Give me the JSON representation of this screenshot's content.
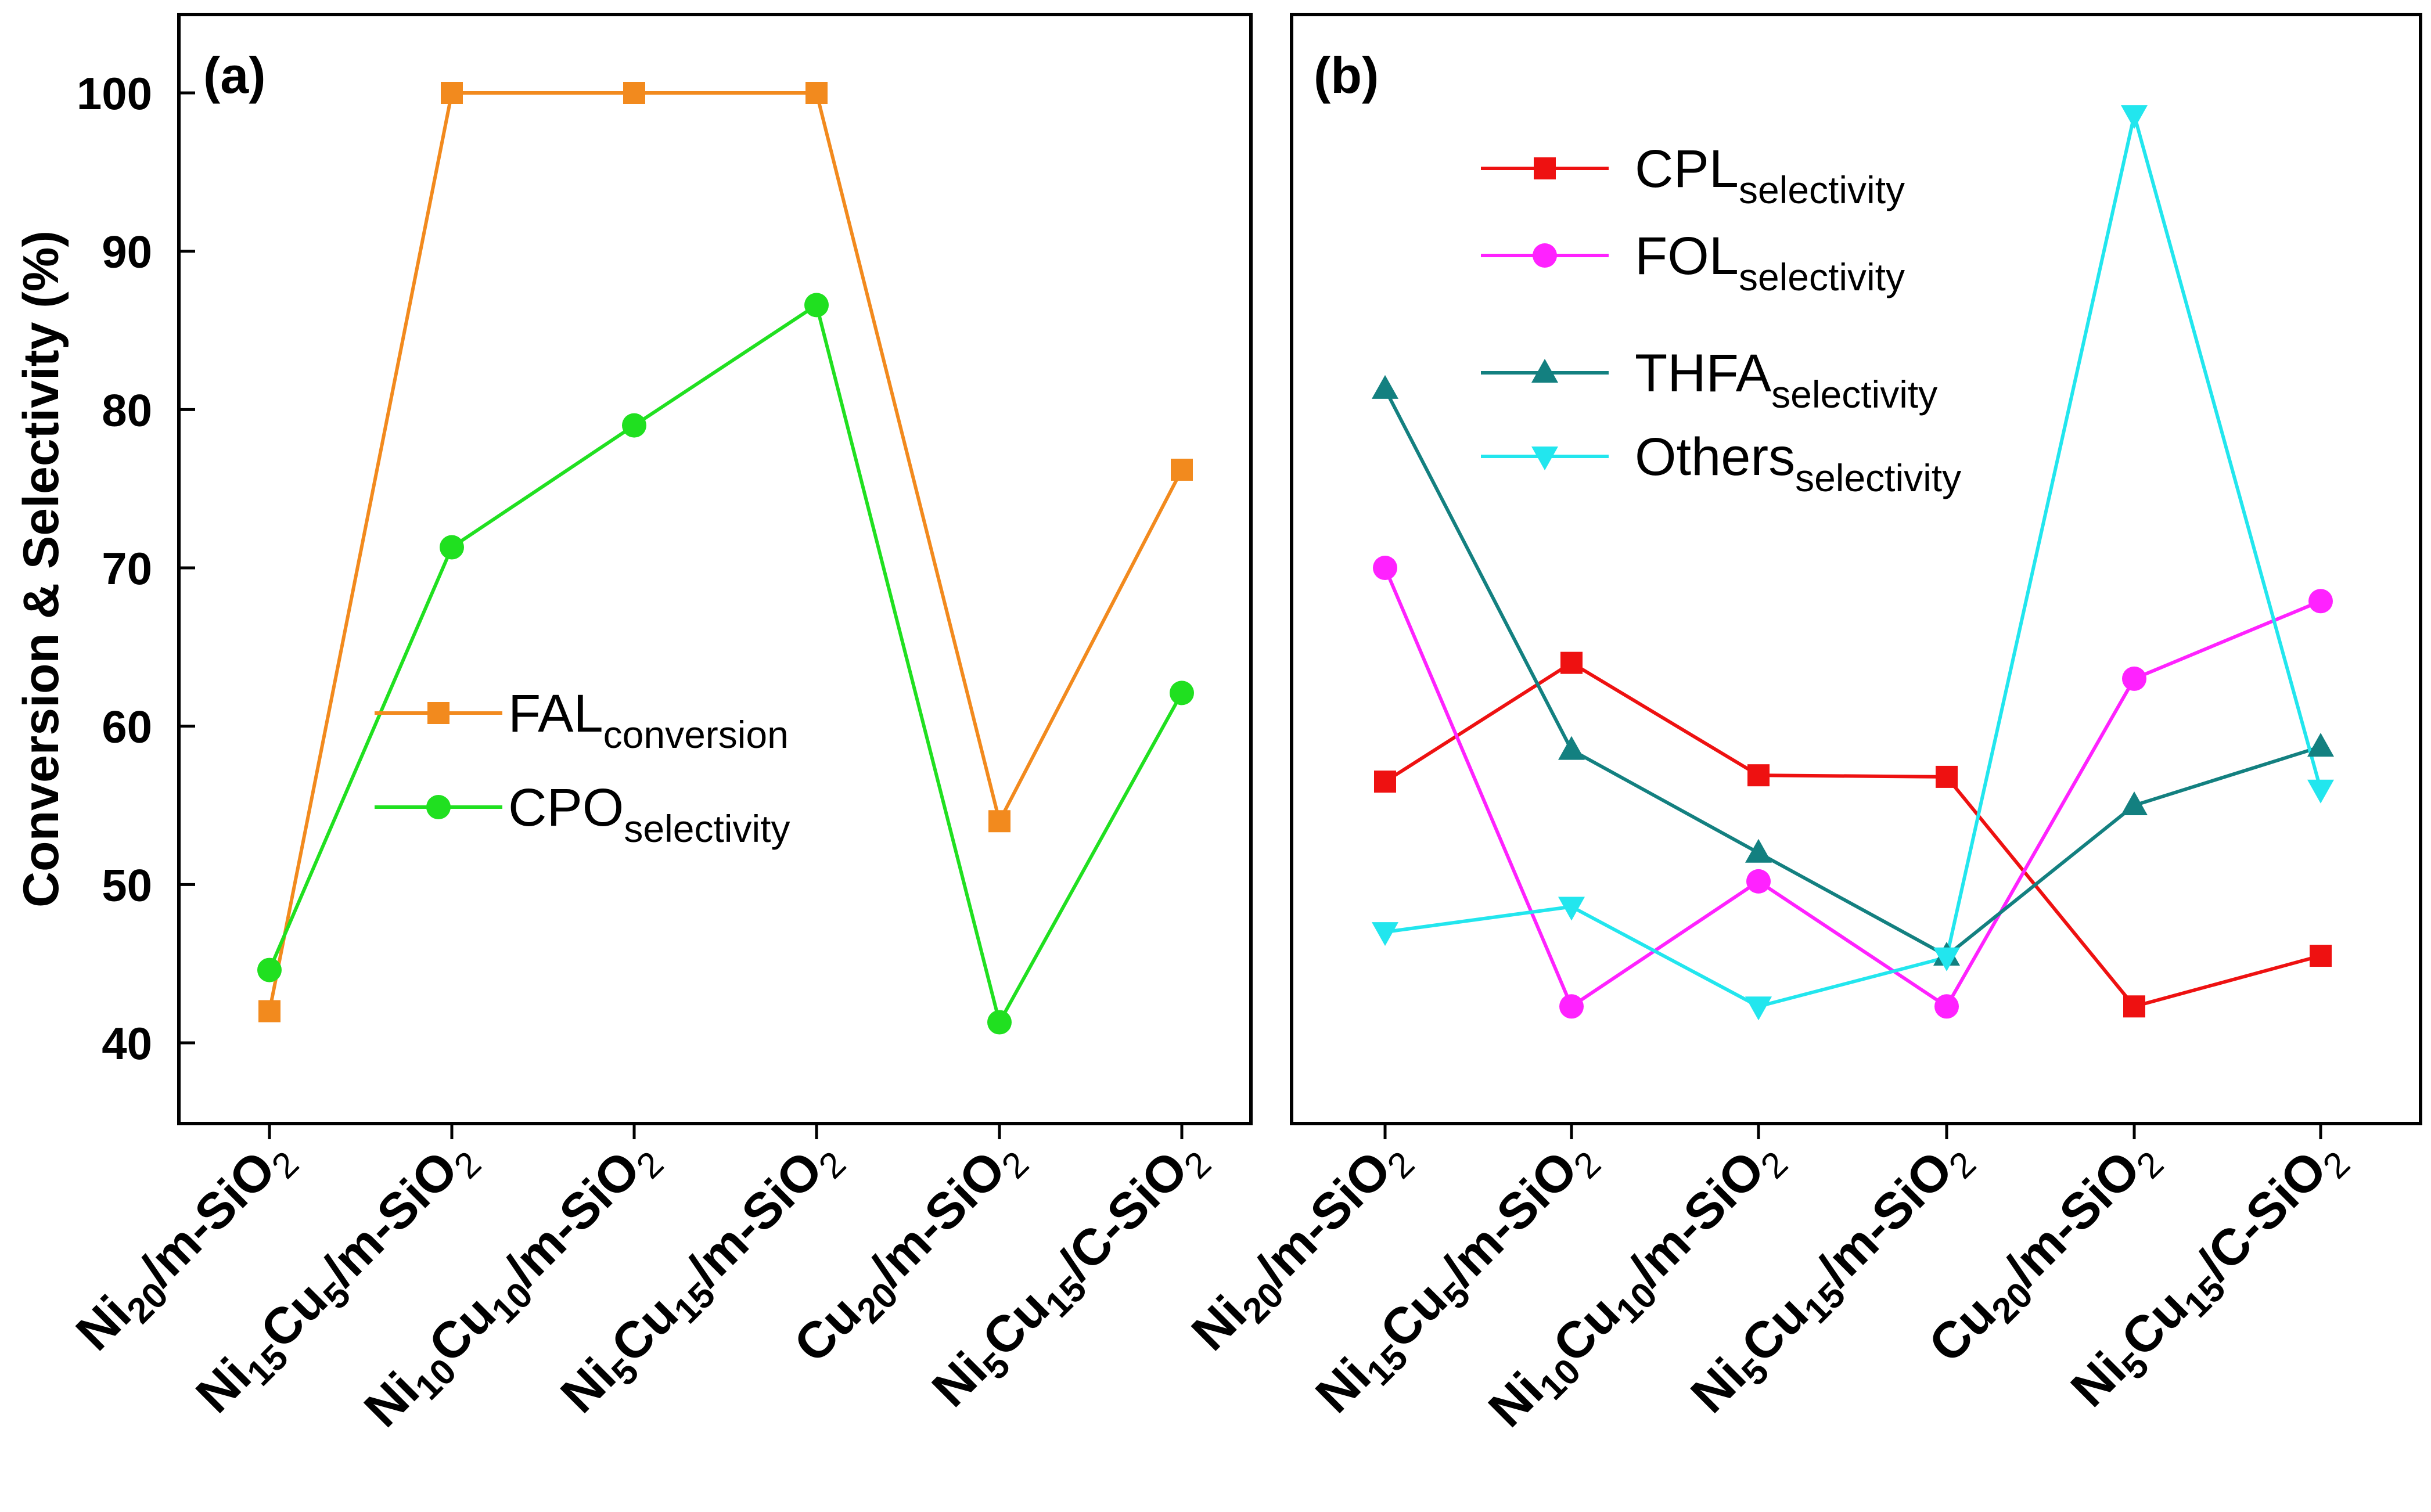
{
  "chart_data": [
    {
      "panel_label": "(a)",
      "type": "line",
      "xlabel": "",
      "ylabel": "Conversion & Selectivity (%)",
      "ylim": [
        35,
        105
      ],
      "yticks": [
        40,
        50,
        60,
        70,
        80,
        90,
        100
      ],
      "categories": [
        {
          "base1": "Ni",
          "sub1": "20",
          "base2": "",
          "sub2": "",
          "tail": "/m-SiO",
          "sub3": "2"
        },
        {
          "base1": "Ni",
          "sub1": "15",
          "base2": "Cu",
          "sub2": "5",
          "tail": "/m-SiO",
          "sub3": "2"
        },
        {
          "base1": "Ni",
          "sub1": "10",
          "base2": "Cu",
          "sub2": "10",
          "tail": "/m-SiO",
          "sub3": "2"
        },
        {
          "base1": "Ni",
          "sub1": "5",
          "base2": "Cu",
          "sub2": "15",
          "tail": "/m-SiO",
          "sub3": "2"
        },
        {
          "base1": "Cu",
          "sub1": "20",
          "base2": "",
          "sub2": "",
          "tail": "/m-SiO",
          "sub3": "2"
        },
        {
          "base1": "Ni",
          "sub1": "5",
          "base2": "Cu",
          "sub2": "15",
          "tail": "/C-SiO",
          "sub3": "2"
        }
      ],
      "legend_position": "center",
      "series": [
        {
          "name": "FAL",
          "name_sub": "conversion",
          "marker": "square",
          "color": "#f28a1e",
          "values": [
            42,
            100,
            100,
            100,
            54,
            76.2
          ]
        },
        {
          "name": "CPO",
          "name_sub": "selectivity",
          "marker": "circle",
          "color": "#20e020",
          "values": [
            44.6,
            71.3,
            79,
            86.6,
            41.3,
            62.1
          ]
        }
      ]
    },
    {
      "panel_label": "(b)",
      "type": "line",
      "xlabel": "",
      "ylabel": "",
      "ylim": [
        35,
        105
      ],
      "yticks": [],
      "categories": [
        {
          "base1": "Ni",
          "sub1": "20",
          "base2": "",
          "sub2": "",
          "tail": "/m-SiO",
          "sub3": "2"
        },
        {
          "base1": "Ni",
          "sub1": "15",
          "base2": "Cu",
          "sub2": "5",
          "tail": "/m-SiO",
          "sub3": "2"
        },
        {
          "base1": "Ni",
          "sub1": "10",
          "base2": "Cu",
          "sub2": "10",
          "tail": "/m-SiO",
          "sub3": "2"
        },
        {
          "base1": "Ni",
          "sub1": "5",
          "base2": "Cu",
          "sub2": "15",
          "tail": "/m-SiO",
          "sub3": "2"
        },
        {
          "base1": "Cu",
          "sub1": "20",
          "base2": "",
          "sub2": "",
          "tail": "/m-SiO",
          "sub3": "2"
        },
        {
          "base1": "Ni",
          "sub1": "5",
          "base2": "Cu",
          "sub2": "15",
          "tail": "/C-SiO",
          "sub3": "2"
        }
      ],
      "legend_position": "top-left",
      "series": [
        {
          "name": "CPL",
          "name_sub": "selectivity",
          "marker": "square",
          "color": "#ee1111",
          "values": [
            56.5,
            64,
            56.9,
            56.8,
            42.3,
            45.5
          ]
        },
        {
          "name": "FOL",
          "name_sub": "selectivity",
          "marker": "circle",
          "color": "#ff22ff",
          "values": [
            70,
            42.3,
            50.2,
            42.3,
            63,
            67.9
          ]
        },
        {
          "name": "THFA",
          "name_sub": "selectivity",
          "marker": "triangle-up",
          "color": "#138080",
          "values": [
            81.3,
            58.5,
            52,
            45.5,
            55,
            58.7
          ]
        },
        {
          "name": "Others",
          "name_sub": "selectivity",
          "marker": "triangle-down",
          "color": "#22e6ee",
          "values": [
            47,
            48.6,
            42.3,
            45.4,
            98.6,
            56
          ]
        }
      ]
    }
  ]
}
